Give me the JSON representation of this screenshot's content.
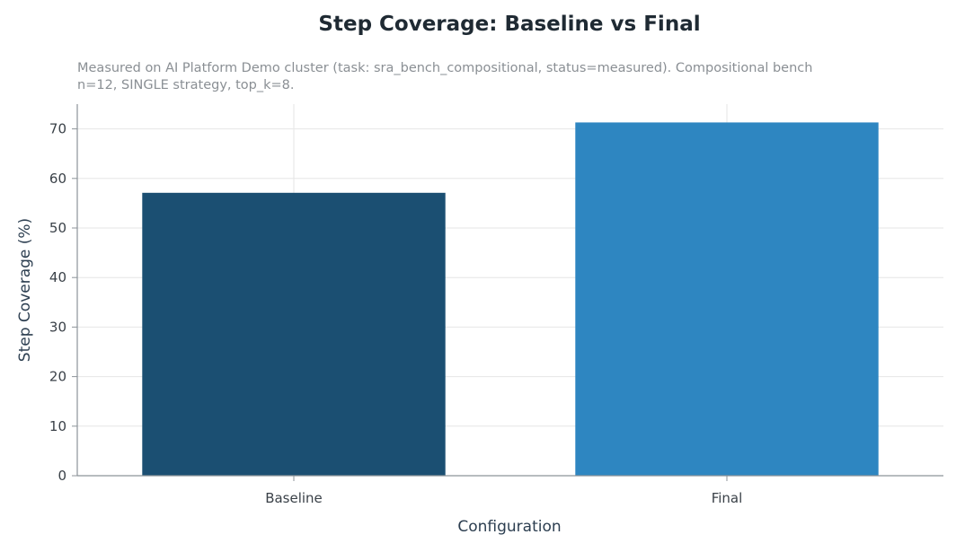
{
  "chart_data": {
    "type": "bar",
    "title": "Step Coverage: Baseline vs Final",
    "subtitle": "Measured on AI Platform Demo cluster (task: sra_bench_compositional, status=measured). Compositional bench n=12, SINGLE strategy, top_k=8.",
    "xlabel": "Configuration",
    "ylabel": "Step Coverage (%)",
    "categories": [
      "Baseline",
      "Final"
    ],
    "values": [
      57.1,
      71.3
    ],
    "colors": [
      "#1b4f72",
      "#2e86c1"
    ],
    "ylim": [
      0,
      75
    ],
    "yticks": [
      0,
      10,
      20,
      30,
      40,
      50,
      60,
      70
    ],
    "grid": true,
    "legend": "none"
  }
}
